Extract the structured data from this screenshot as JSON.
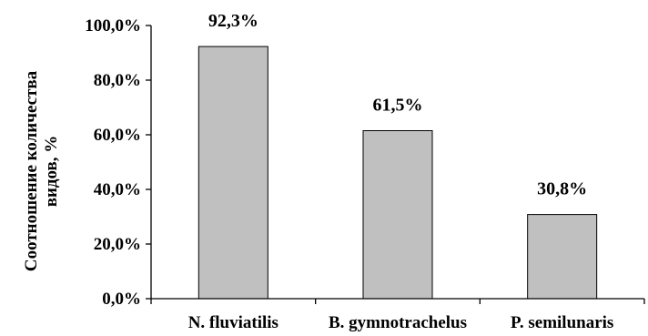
{
  "chart_data": {
    "type": "bar",
    "categories": [
      "N. fluviatilis",
      "B. gymnotrachelus",
      "P. semilunaris"
    ],
    "values": [
      92.3,
      61.5,
      30.8
    ],
    "data_labels": [
      "92,3%",
      "61,5%",
      "30,8%"
    ],
    "ylabel_lines": [
      "Соотношение  количества",
      "видов, %"
    ],
    "ylim": [
      0,
      100
    ],
    "yticks": [
      0,
      20,
      40,
      60,
      80,
      100
    ],
    "ytick_labels": [
      "0,0%",
      "20,0%",
      "40,0%",
      "60,0%",
      "80,0%",
      "100,0%"
    ],
    "grid": false,
    "legend": "none",
    "bar_color": "#c0c0c0",
    "bar_stroke": "#000000"
  }
}
